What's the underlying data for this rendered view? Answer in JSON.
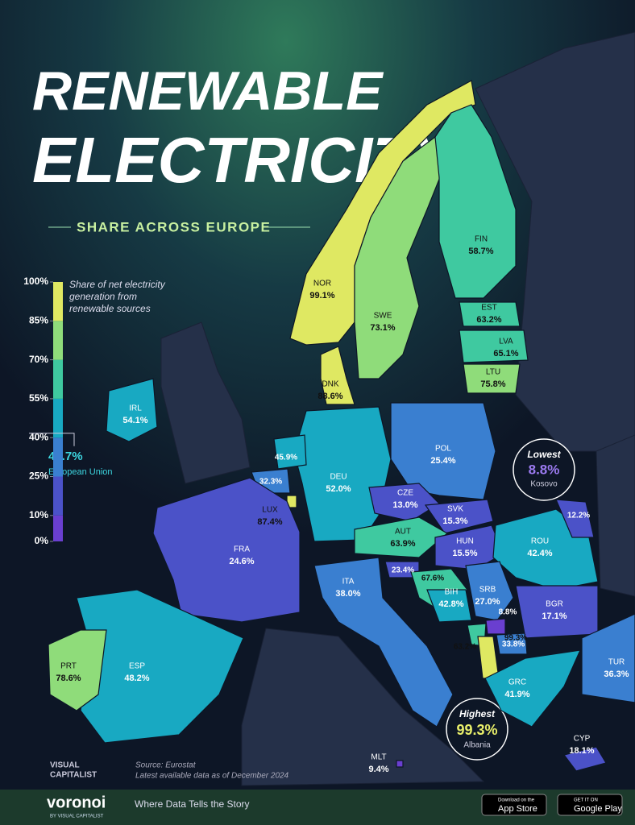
{
  "header": {
    "title_line1": "RENEWABLE",
    "title_line2": "ELECTRICITY",
    "subtitle": "SHARE ACROSS EUROPE"
  },
  "legend": {
    "title_lines": [
      "Share of net electricity",
      "generation from",
      "renewable sources"
    ],
    "ticks": [
      {
        "value": 100,
        "label": "100%"
      },
      {
        "value": 85,
        "label": "85%"
      },
      {
        "value": 70,
        "label": "70%"
      },
      {
        "value": 55,
        "label": "55%"
      },
      {
        "value": 40,
        "label": "40%"
      },
      {
        "value": 25,
        "label": "25%"
      },
      {
        "value": 10,
        "label": "10%"
      },
      {
        "value": 0,
        "label": "0%"
      }
    ],
    "colors": [
      "#6a3fd0",
      "#4b52c8",
      "#3a7fd0",
      "#18a9c2",
      "#3fc9a0",
      "#8fdc7a",
      "#dfe862"
    ]
  },
  "eu": {
    "value": 41.7,
    "label": "41.7%",
    "name": "European Union"
  },
  "countries": [
    {
      "code": "NOR",
      "value": 99.1,
      "label": "99.1%"
    },
    {
      "code": "SWE",
      "value": 73.1,
      "label": "73.1%"
    },
    {
      "code": "FIN",
      "value": 58.7,
      "label": "58.7%"
    },
    {
      "code": "EST",
      "value": 63.2,
      "label": "63.2%"
    },
    {
      "code": "LVA",
      "value": 65.1,
      "label": "65.1%"
    },
    {
      "code": "LTU",
      "value": 75.8,
      "label": "75.8%"
    },
    {
      "code": "DNK",
      "value": 88.6,
      "label": "88.6%"
    },
    {
      "code": "IRL",
      "value": 54.1,
      "label": "54.1%"
    },
    {
      "code": "POL",
      "value": 25.4,
      "label": "25.4%"
    },
    {
      "code": "DEU",
      "value": 52.0,
      "label": "52.0%"
    },
    {
      "code": null,
      "value": 45.9,
      "label": "45.9%"
    },
    {
      "code": null,
      "value": 32.3,
      "label": "32.3%"
    },
    {
      "code": "LUX",
      "value": 87.4,
      "label": "87.4%"
    },
    {
      "code": "FRA",
      "value": 24.6,
      "label": "24.6%"
    },
    {
      "code": "CZE",
      "value": 13.0,
      "label": "13.0%"
    },
    {
      "code": "SVK",
      "value": 15.3,
      "label": "15.3%"
    },
    {
      "code": "AUT",
      "value": 63.9,
      "label": "63.9%"
    },
    {
      "code": "HUN",
      "value": 15.5,
      "label": "15.5%"
    },
    {
      "code": "ROU",
      "value": 42.4,
      "label": "42.4%"
    },
    {
      "code": null,
      "value": 12.2,
      "label": "12.2%"
    },
    {
      "code": null,
      "value": 23.4,
      "label": "23.4%"
    },
    {
      "code": null,
      "value": 67.6,
      "label": "67.6%"
    },
    {
      "code": "BIH",
      "value": 42.8,
      "label": "42.8%"
    },
    {
      "code": "SRB",
      "value": 27.0,
      "label": "27.0%"
    },
    {
      "code": null,
      "value": 8.8,
      "label": "8.8%"
    },
    {
      "code": null,
      "value": 63.2,
      "label": "63.2%"
    },
    {
      "code": null,
      "value": 99.3,
      "label": "99.3%"
    },
    {
      "code": null,
      "value": 33.8,
      "label": "33.8%"
    },
    {
      "code": "BGR",
      "value": 17.1,
      "label": "17.1%"
    },
    {
      "code": "GRC",
      "value": 41.9,
      "label": "41.9%"
    },
    {
      "code": "TUR",
      "value": 36.3,
      "label": "36.3%"
    },
    {
      "code": "ITA",
      "value": 38.0,
      "label": "38.0%"
    },
    {
      "code": "ESP",
      "value": 48.2,
      "label": "48.2%"
    },
    {
      "code": "PRT",
      "value": 78.6,
      "label": "78.6%"
    },
    {
      "code": "CYP",
      "value": 18.1,
      "label": "18.1%"
    },
    {
      "code": "MLT",
      "value": 9.4,
      "label": "9.4%"
    }
  ],
  "callouts": {
    "lowest": {
      "title": "Lowest",
      "value": 8.8,
      "label": "8.8%",
      "country": "Kosovo"
    },
    "highest": {
      "title": "Highest",
      "value": 99.3,
      "label": "99.3%",
      "country": "Albania"
    }
  },
  "footer": {
    "brand": "VISUAL",
    "brand2": "CAPITALIST",
    "source": "Source: Eurostat",
    "note": "Latest available data as of December 2024",
    "logo": "voronoi",
    "logo_sub": "BY VISUAL CAPITALIST",
    "tagline": "Where Data Tells the Story",
    "appstore_small": "Download on the",
    "appstore": "App Store",
    "play_small": "GET IT ON",
    "play": "Google Play"
  }
}
